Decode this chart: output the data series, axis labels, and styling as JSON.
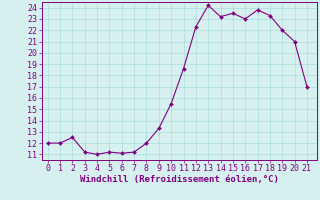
{
  "x": [
    0,
    1,
    2,
    3,
    4,
    5,
    6,
    7,
    8,
    9,
    10,
    11,
    12,
    13,
    14,
    15,
    16,
    17,
    18,
    19,
    20,
    21
  ],
  "y": [
    12.0,
    12.0,
    12.5,
    11.2,
    11.0,
    11.2,
    11.1,
    11.2,
    12.0,
    13.3,
    15.5,
    18.6,
    22.3,
    24.2,
    23.2,
    23.5,
    23.0,
    23.8,
    23.3,
    22.0,
    21.0,
    17.0
  ],
  "line_color": "#800080",
  "marker_color": "#800080",
  "bg_color": "#d6f0f0",
  "grid_color": "#aadddd",
  "xlabel": "Windchill (Refroidissement éolien,°C)",
  "xlim": [
    -0.5,
    21.8
  ],
  "ylim": [
    10.5,
    24.5
  ],
  "yticks": [
    11,
    12,
    13,
    14,
    15,
    16,
    17,
    18,
    19,
    20,
    21,
    22,
    23,
    24
  ],
  "xticks": [
    0,
    1,
    2,
    3,
    4,
    5,
    6,
    7,
    8,
    9,
    10,
    11,
    12,
    13,
    14,
    15,
    16,
    17,
    18,
    19,
    20,
    21
  ],
  "label_fontsize": 6.5,
  "tick_fontsize": 6.0
}
